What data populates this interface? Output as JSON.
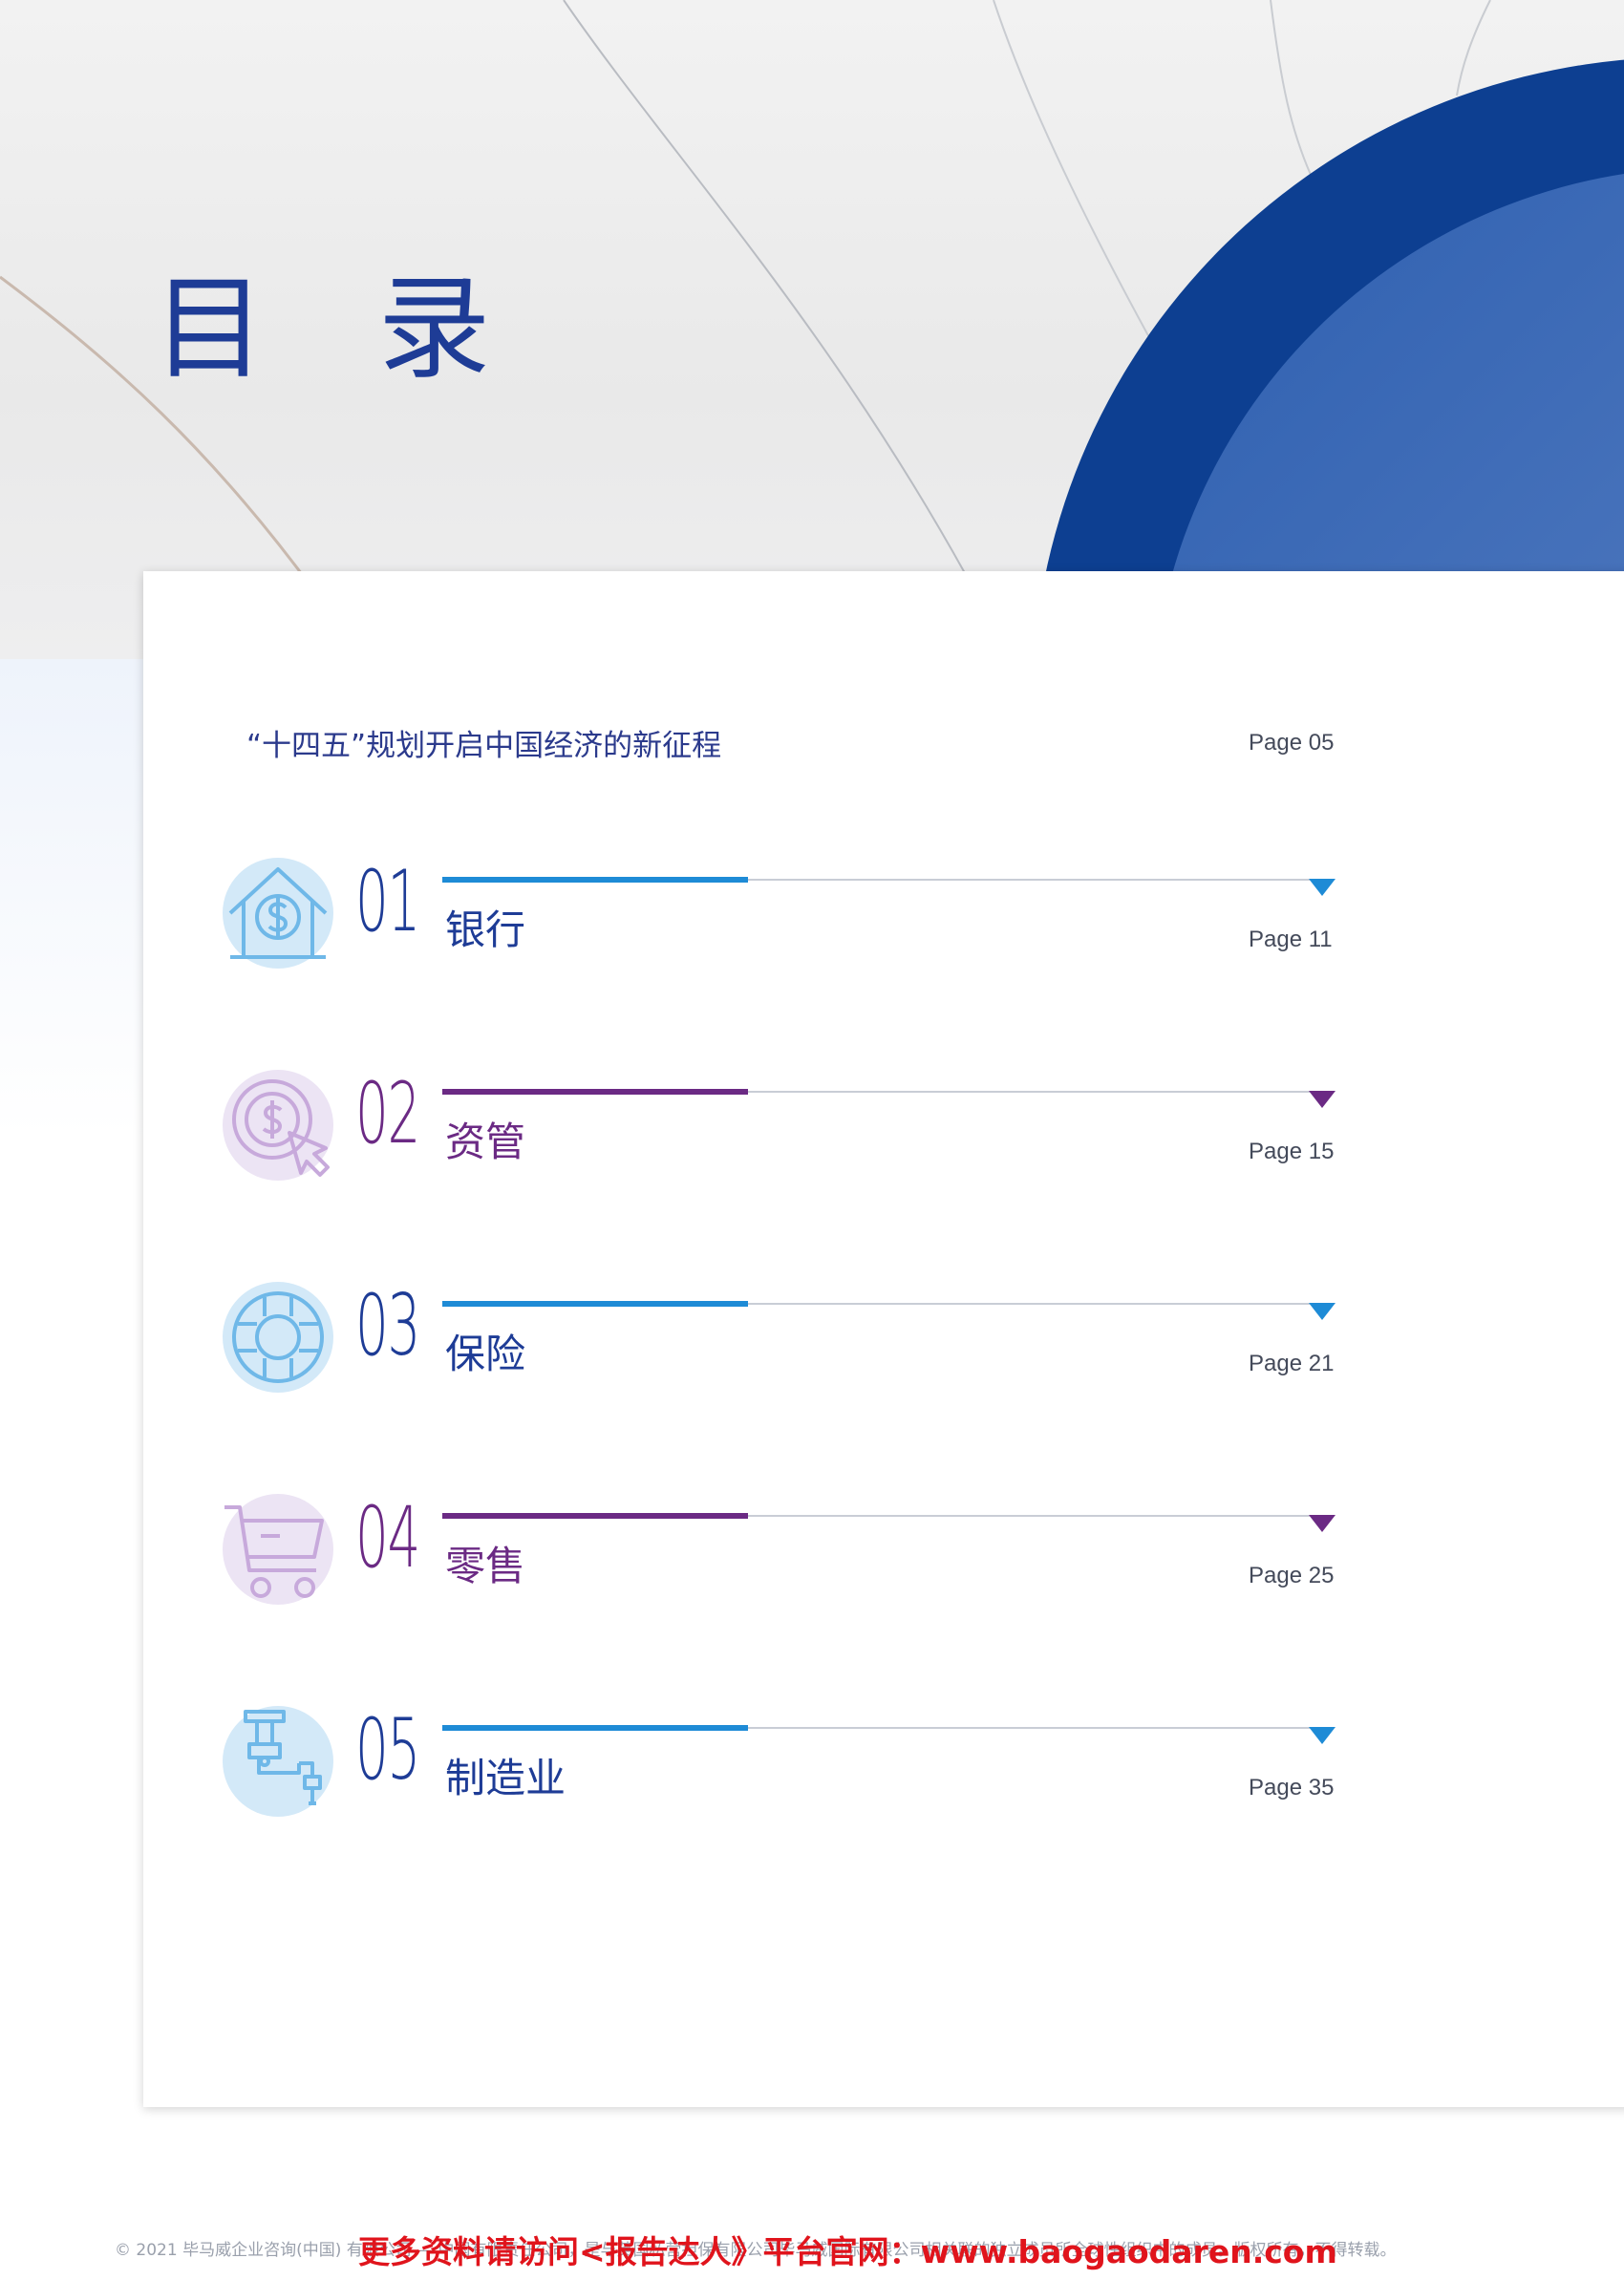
{
  "header": {
    "title": "目 录"
  },
  "intro": {
    "text": "“十四五”规划开启中国经济的新征程",
    "page": "Page  05"
  },
  "sections": [
    {
      "number": "01",
      "label": "银行",
      "page": "Page  11",
      "icon": "house-dollar-icon",
      "color": "#1e8bd6",
      "light": "#d3e9f8",
      "text_color": "#1e3c96"
    },
    {
      "number": "02",
      "label": "资管",
      "page": "Page  15",
      "icon": "dollar-coin-cursor-icon",
      "color": "#6b2a84",
      "light": "#ece4f4",
      "text_color": "#6b2a84"
    },
    {
      "number": "03",
      "label": "保险",
      "page": "Page  21",
      "icon": "lifebuoy-icon",
      "color": "#1e8bd6",
      "light": "#d3e9f8",
      "text_color": "#1e3c96"
    },
    {
      "number": "04",
      "label": "零售",
      "page": "Page  25",
      "icon": "shopping-cart-icon",
      "color": "#6b2a84",
      "light": "#ece4f4",
      "text_color": "#6b2a84"
    },
    {
      "number": "05",
      "label": "制造业",
      "page": "Page  35",
      "icon": "robot-arm-icon",
      "color": "#1e8bd6",
      "light": "#d3e9f8",
      "text_color": "#1e3c96"
    }
  ],
  "footer": {
    "copyright": "© 2021 毕马威企业咨询(中国) 有限公司 — 中国有限责任公司，是与英国私营担保有限公司毕马威国际有限公司相关联的独立成员所全球性组织中的成员。版权所有，不得转载。",
    "promo": "更多资料请访问<报告达人》平台官网：www.baogaodaren.com"
  },
  "colors": {
    "navy": "#0d3f91",
    "brand_blue": "#1e3c96",
    "accent_blue": "#1e8bd6",
    "accent_purple": "#6b2a84"
  }
}
